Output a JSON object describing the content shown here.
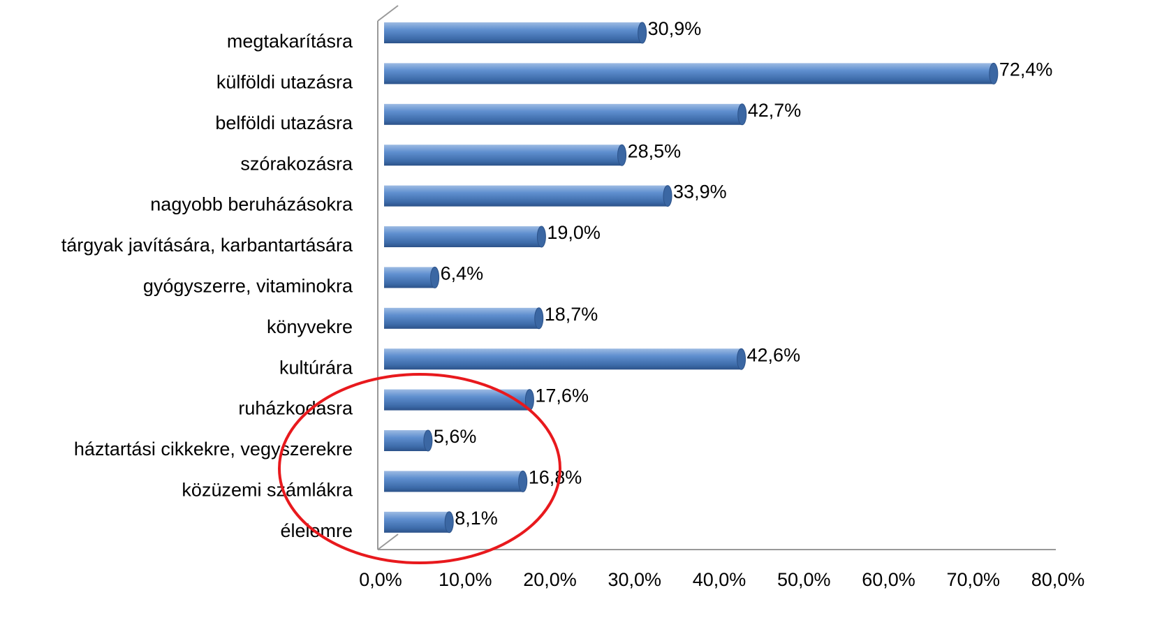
{
  "chart_data": {
    "type": "bar",
    "orientation": "horizontal",
    "categories": [
      "megtakarításra",
      "külföldi utazásra",
      "belföldi utazásra",
      "szórakozásra",
      "nagyobb beruházásokra",
      "tárgyak javítására, karbantartására",
      "gyógyszerre, vitaminokra",
      "könyvekre",
      "kultúrára",
      "ruházkodásra",
      "háztartási cikkekre, vegyszerekre",
      "közüzemi számlákra",
      "élelemre"
    ],
    "values": [
      30.9,
      72.4,
      42.7,
      28.5,
      33.9,
      19.0,
      6.4,
      18.7,
      42.6,
      17.6,
      5.6,
      16.8,
      8.1
    ],
    "value_labels": [
      "30,9%",
      "72,4%",
      "42,7%",
      "28,5%",
      "33,9%",
      "19,0%",
      "6,4%",
      "18,7%",
      "42,6%",
      "17,6%",
      "5,6%",
      "16,8%",
      "8,1%"
    ],
    "color": "#4f81bd",
    "xlim": [
      0,
      80
    ],
    "xticks": [
      {
        "value": 0,
        "label": "0,0%"
      },
      {
        "value": 10,
        "label": "10,0%"
      },
      {
        "value": 20,
        "label": "20,0%"
      },
      {
        "value": 30,
        "label": "30,0%"
      },
      {
        "value": 40,
        "label": "40,0%"
      },
      {
        "value": 50,
        "label": "50,0%"
      },
      {
        "value": 60,
        "label": "60,0%"
      },
      {
        "value": 70,
        "label": "70,0%"
      },
      {
        "value": 80,
        "label": "80,0%"
      }
    ],
    "grid": false
  }
}
